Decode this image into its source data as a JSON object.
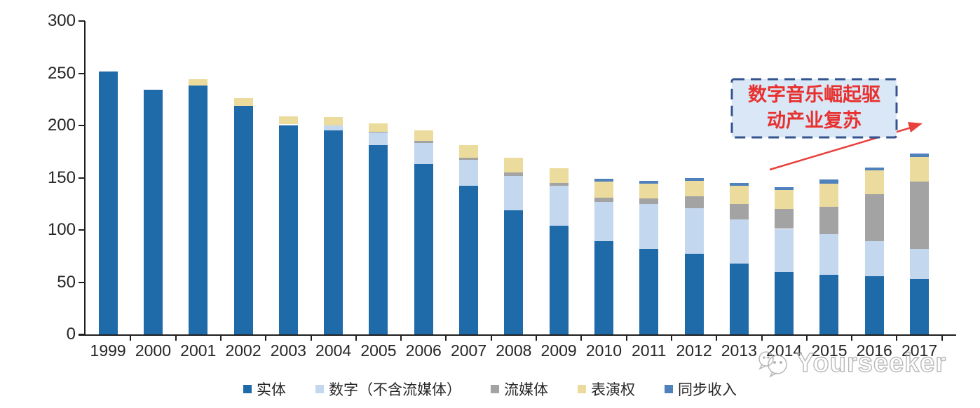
{
  "chart_data": {
    "type": "bar",
    "stacked": true,
    "title": "",
    "xlabel": "",
    "ylabel": "",
    "categories": [
      "1999",
      "2000",
      "2001",
      "2002",
      "2003",
      "2004",
      "2005",
      "2006",
      "2007",
      "2008",
      "2009",
      "2010",
      "2011",
      "2012",
      "2013",
      "2014",
      "2015",
      "2016",
      "2017"
    ],
    "series": [
      {
        "name": "实体",
        "color": "#1F6AA9",
        "values": [
          252,
          234,
          238,
          219,
          200,
          195,
          181,
          163,
          142,
          119,
          104,
          89,
          82,
          77,
          68,
          60,
          57,
          56,
          53
        ]
      },
      {
        "name": "数字（不含流媒体）",
        "color": "#C3D7EE",
        "values": [
          0,
          0,
          0,
          0,
          1,
          5,
          12,
          20,
          25,
          33,
          38,
          38,
          43,
          44,
          42,
          41,
          39,
          33,
          29
        ]
      },
      {
        "name": "流媒体",
        "color": "#A3A3A3",
        "values": [
          0,
          0,
          0,
          0,
          0,
          0,
          1,
          2,
          2,
          3,
          3,
          4,
          5,
          11,
          15,
          19,
          26,
          45,
          64
        ]
      },
      {
        "name": "表演权",
        "color": "#EBDB9C",
        "values": [
          0,
          0,
          6,
          7,
          8,
          8,
          8,
          10,
          12,
          14,
          14,
          15,
          14,
          15,
          17,
          18,
          22,
          23,
          24
        ]
      },
      {
        "name": "同步收入",
        "color": "#4F81BD",
        "values": [
          0,
          0,
          0,
          0,
          0,
          0,
          0,
          0,
          0,
          0,
          0,
          3,
          3,
          3,
          3,
          3,
          4,
          3,
          3
        ]
      }
    ],
    "ylim": [
      0,
      300
    ],
    "yticks": [
      0,
      50,
      100,
      150,
      200,
      250,
      300
    ],
    "grid": false,
    "legend_position": "bottom"
  },
  "annotation": {
    "text_line1": "数字音乐崛起驱",
    "text_line2": "动产业复苏",
    "text_color": "#E8312F",
    "fill_color": "#D9E7F6",
    "border_color": "#35548F",
    "arrow_color": "#E8413E"
  },
  "watermark": {
    "text": "Yourseeker",
    "logo": "double-bubble-face-icon"
  }
}
